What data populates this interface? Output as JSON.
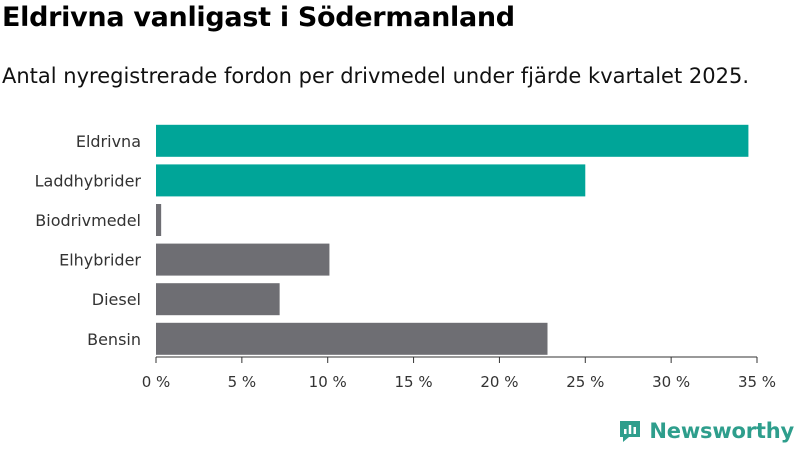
{
  "header": {
    "title": "Eldrivna vanligast i Södermanland",
    "subtitle": "Antal nyregistrerade fordon per drivmedel under fjärde kvartalet 2025."
  },
  "brand": {
    "name": "Newsworthy",
    "icon": "newsworthy-logo-icon",
    "color": "#2e9e8c"
  },
  "chart_data": {
    "type": "bar",
    "orientation": "horizontal",
    "title": "Eldrivna vanligast i Södermanland",
    "subtitle": "Antal nyregistrerade fordon per drivmedel under fjärde kvartalet 2025.",
    "categories": [
      "Eldrivna",
      "Laddhybrider",
      "Biodrivmedel",
      "Elhybrider",
      "Diesel",
      "Bensin"
    ],
    "values": [
      34.5,
      25.0,
      0.3,
      10.1,
      7.2,
      22.8
    ],
    "colors": [
      "#00a598",
      "#00a598",
      "#6e6e73",
      "#6e6e73",
      "#6e6e73",
      "#6e6e73"
    ],
    "xlim": [
      0,
      35
    ],
    "xticks": [
      0,
      5,
      10,
      15,
      20,
      25,
      30,
      35
    ],
    "xtick_labels": [
      "0 %",
      "5 %",
      "10 %",
      "15 %",
      "20 %",
      "25 %",
      "30 %",
      "35 %"
    ],
    "xlabel": "",
    "ylabel": "",
    "grid": false,
    "legend": "none"
  }
}
